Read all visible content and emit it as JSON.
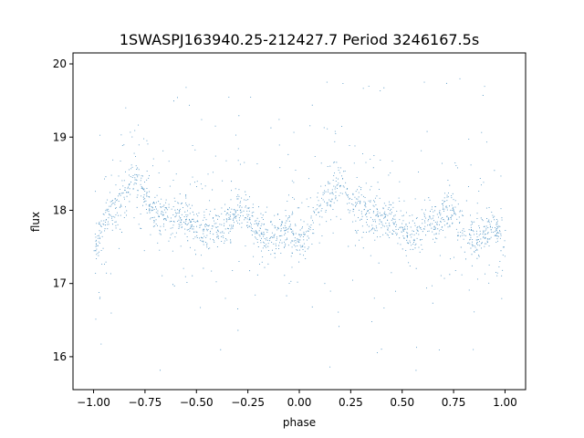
{
  "chart_data": {
    "type": "scatter",
    "title": "1SWASPJ163940.25-212427.7 Period 3246167.5s",
    "xlabel": "phase",
    "ylabel": "flux",
    "xlim": [
      -1.1,
      1.1
    ],
    "ylim": [
      15.55,
      20.15
    ],
    "grid": false,
    "legend": "none",
    "color": "#1f77b4",
    "xticks": [
      -1.0,
      -0.75,
      -0.5,
      -0.25,
      0.0,
      0.25,
      0.5,
      0.75,
      1.0
    ],
    "xtick_labels": [
      "−1.00",
      "−0.75",
      "−0.50",
      "−0.25",
      "0.00",
      "0.25",
      "0.50",
      "0.75",
      "1.00"
    ],
    "yticks": [
      16,
      17,
      18,
      19,
      20
    ],
    "ytick_labels": [
      "16",
      "17",
      "18",
      "19",
      "20"
    ],
    "series": [
      {
        "profile": {
          "phase": [
            0.0,
            0.03,
            0.06,
            0.1,
            0.13,
            0.17,
            0.2,
            0.23,
            0.26,
            0.3,
            0.35,
            0.4,
            0.45,
            0.5,
            0.55,
            0.6,
            0.65,
            0.7,
            0.75,
            0.8,
            0.85,
            0.9,
            0.95,
            1.0
          ],
          "flux_mean": [
            17.55,
            17.65,
            17.9,
            18.05,
            18.15,
            18.3,
            18.45,
            18.3,
            18.1,
            18.0,
            17.95,
            17.9,
            17.85,
            17.75,
            17.7,
            17.75,
            17.85,
            18.0,
            17.95,
            17.7,
            17.6,
            17.7,
            17.8,
            17.55
          ],
          "flux_spread": 0.35
        },
        "n_points": 5200,
        "outlier_range": [
          15.8,
          19.8
        ]
      }
    ]
  }
}
